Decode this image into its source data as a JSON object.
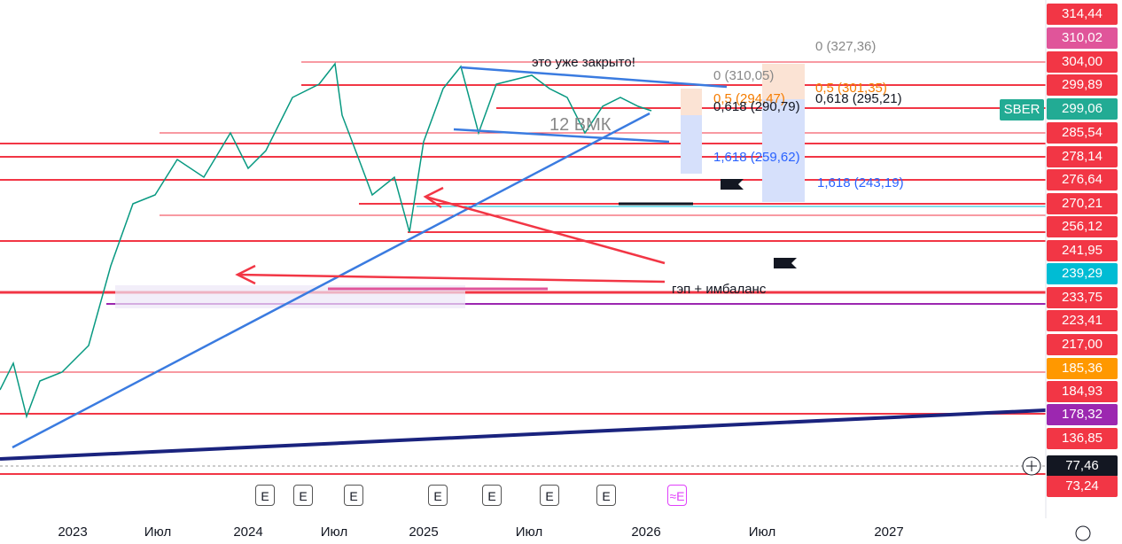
{
  "symbol": "SBER",
  "price_labels": [
    "314,44",
    "310,02",
    "304,00",
    "299,89",
    "299,06",
    "285,54",
    "278,14",
    "276,64",
    "270,21",
    "256,12",
    "241,95",
    "239,29",
    "233,75",
    "223,41",
    "217,00",
    "185,36",
    "184,93",
    "178,32",
    "136,85",
    "77,46",
    "73,24"
  ],
  "price_label_colors": [
    "#f23645",
    "#e0559a",
    "#f23645",
    "#f23645",
    "#22ab94",
    "#f23645",
    "#f23645",
    "#f23645",
    "#f23645",
    "#f23645",
    "#f23645",
    "#00bcd4",
    "#f23645",
    "#f23645",
    "#f23645",
    "#ff9800",
    "#f23645",
    "#9c27b0",
    "#f23645",
    "#131722",
    "#f23645"
  ],
  "time_labels": [
    "2023",
    "Июл",
    "2024",
    "Июл",
    "2025",
    "Июл",
    "2026",
    "Июл",
    "2027"
  ],
  "fib_labels": [
    "0 (327,36)",
    "0 (310,05)",
    "0,5 (301,35)",
    "0,5 (294,47)",
    "0,618 (295,21)",
    "0,618 (290,79)",
    "1,618 (259,62)",
    "1,618 (243,19)"
  ],
  "fib_label_colors": [
    "#888888",
    "#888888",
    "#f57c00",
    "#f57c00",
    "#131722",
    "#131722",
    "#2962ff",
    "#2962ff"
  ],
  "annotations": [
    "это уже закрыто!",
    "12 ВМК",
    "гэп + имбаланс"
  ],
  "earnings_labels": [
    "E",
    "E",
    "E",
    "E",
    "E",
    "E",
    "E",
    "≈E"
  ]
}
